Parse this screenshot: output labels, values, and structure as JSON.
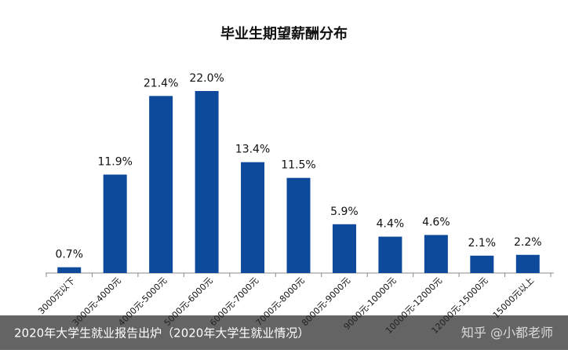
{
  "chart_data": {
    "type": "bar",
    "title": "毕业生期望薪酬分布",
    "categories": [
      "3000元以下",
      "3000元-4000元",
      "4000元-5000元",
      "5000元-6000元",
      "6000元-7000元",
      "7000元-8000元",
      "8000元-9000元",
      "9000元-10000元",
      "10000元-12000元",
      "12000元-15000元",
      "15000元以上"
    ],
    "values": [
      0.7,
      11.9,
      21.4,
      22.0,
      13.4,
      11.5,
      5.9,
      4.4,
      4.6,
      2.1,
      2.2
    ],
    "value_labels": [
      "0.7%",
      "11.9%",
      "21.4%",
      "22.0%",
      "13.4%",
      "11.5%",
      "5.9%",
      "4.4%",
      "4.6%",
      "2.1%",
      "2.2%"
    ],
    "color": "#0d4a9c",
    "caption": "2020年大学生就业报告出炉（2020年大学生就业情况）",
    "watermark": "知乎 @小都老师"
  }
}
